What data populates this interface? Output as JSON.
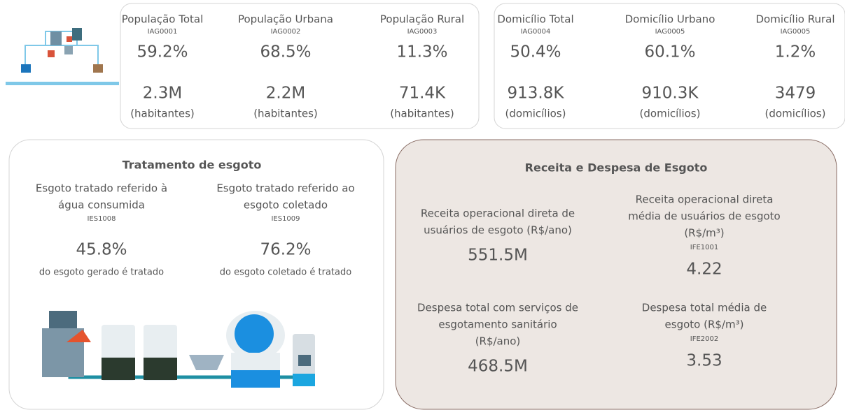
{
  "population": [
    {
      "title": "População Total",
      "code": "IAG0001",
      "percent": "59.2%",
      "count": "2.3M",
      "unit": "(habitantes)"
    },
    {
      "title": "População Urbana",
      "code": "IAG0002",
      "percent": "68.5%",
      "count": "2.2M",
      "unit": "(habitantes)"
    },
    {
      "title": "População Rural",
      "code": "IAG0003",
      "percent": "11.3%",
      "count": "71.4K",
      "unit": "(habitantes)"
    }
  ],
  "households": [
    {
      "title": "Domicílio Total",
      "code": "IAG0004",
      "percent": "50.4%",
      "count": "913.8K",
      "unit": "(domicílios)"
    },
    {
      "title": "Domicílio Urbano",
      "code": "IAG0005",
      "percent": "60.1%",
      "count": "910.3K",
      "unit": "(domicílios)"
    },
    {
      "title": "Domicílio Rural",
      "code": "IAG0005",
      "percent": "1.2%",
      "count": "3479",
      "unit": "(domicílios)"
    }
  ],
  "treatment": {
    "title": "Tratamento de esgoto",
    "items": [
      {
        "lines": [
          "Esgoto tratado referido à",
          "água consumida"
        ],
        "code": "IES1008",
        "value": "45.8%",
        "description": "do esgoto gerado é tratado"
      },
      {
        "lines": [
          "Esgoto tratado referido ao",
          "esgoto coletado"
        ],
        "code": "IES1009",
        "value": "76.2%",
        "description": "do esgoto coletado é tratado"
      }
    ]
  },
  "finance": {
    "title": "Receita e Despesa de Esgoto",
    "items": [
      {
        "lines": [
          "Receita operacional direta de",
          "usuários de esgoto (R$/ano)"
        ],
        "value": "551.5M"
      },
      {
        "lines": [
          "Receita operacional direta",
          "média de usuários de esgoto",
          "(R$/m³)"
        ],
        "code": "IFE1001",
        "value": "4.22"
      },
      {
        "lines": [
          "Despesa total com serviços de",
          "esgotamento sanitário",
          "(R$/ano)"
        ],
        "value": "468.5M"
      },
      {
        "lines": [
          "Despesa total média de",
          "esgoto (R$/m³)"
        ],
        "code": "IFE2002",
        "value": "3.53"
      }
    ]
  }
}
